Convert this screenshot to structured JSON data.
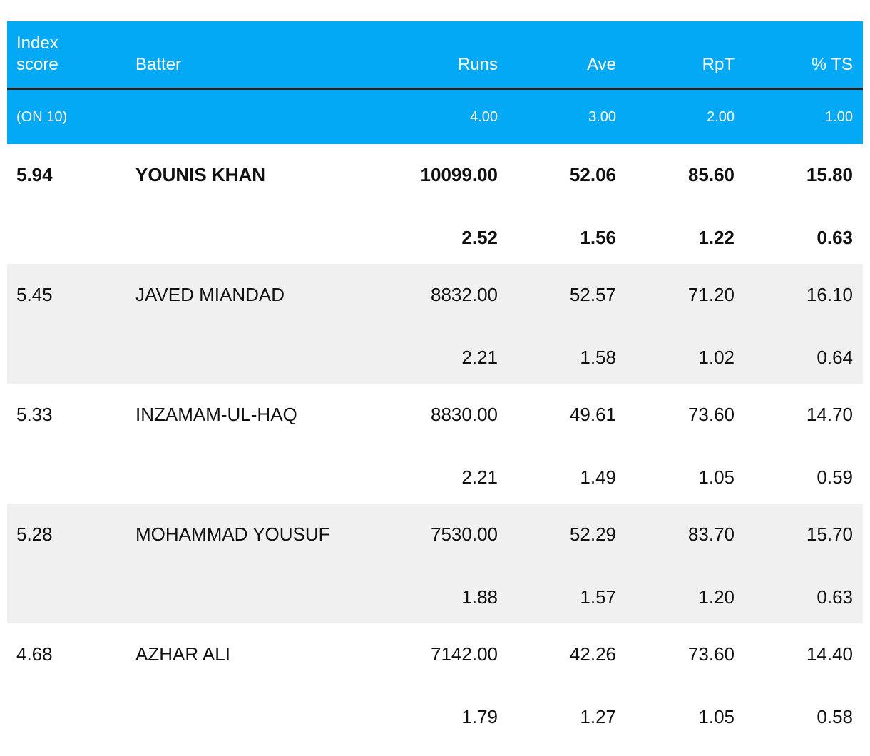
{
  "table": {
    "header": [
      "Index score",
      "Batter",
      "Runs",
      "Ave",
      "RpT",
      "% TS"
    ],
    "weights": {
      "label": "(ON 10)",
      "values": [
        "4.00",
        "3.00",
        "2.00",
        "1.00"
      ]
    },
    "rows": [
      {
        "index": "5.94",
        "batter": "YOUNIS KHAN",
        "stats": [
          "10099.00",
          "52.06",
          "85.60",
          "15.80"
        ],
        "scores": [
          "2.52",
          "1.56",
          "1.22",
          "0.63"
        ]
      },
      {
        "index": "5.45",
        "batter": "JAVED MIANDAD",
        "stats": [
          "8832.00",
          "52.57",
          "71.20",
          "16.10"
        ],
        "scores": [
          "2.21",
          "1.58",
          "1.02",
          "0.64"
        ]
      },
      {
        "index": "5.33",
        "batter": "INZAMAM-UL-HAQ",
        "stats": [
          "8830.00",
          "49.61",
          "73.60",
          "14.70"
        ],
        "scores": [
          "2.21",
          "1.49",
          "1.05",
          "0.59"
        ]
      },
      {
        "index": "5.28",
        "batter": "MOHAMMAD YOUSUF",
        "stats": [
          "7530.00",
          "52.29",
          "83.70",
          "15.70"
        ],
        "scores": [
          "1.88",
          "1.57",
          "1.20",
          "0.63"
        ]
      },
      {
        "index": "4.68",
        "batter": "AZHAR ALI",
        "stats": [
          "7142.00",
          "42.26",
          "73.60",
          "14.40"
        ],
        "scores": [
          "1.79",
          "1.27",
          "1.05",
          "0.58"
        ]
      }
    ]
  }
}
